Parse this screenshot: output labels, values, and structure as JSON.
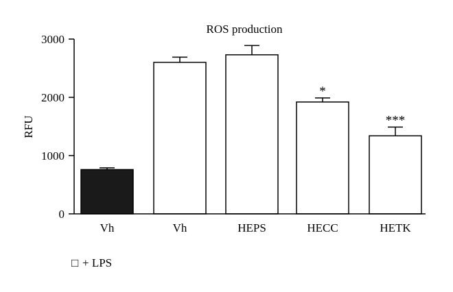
{
  "chart_data": {
    "type": "bar",
    "title": "ROS production",
    "ylabel": "RFU",
    "xlabel": "",
    "ylim": [
      0,
      3000
    ],
    "yticks": [
      0,
      1000,
      2000,
      3000
    ],
    "grid": false,
    "categories": [
      "Vh",
      "Vh",
      "HEPS",
      "HECC",
      "HETK"
    ],
    "values": [
      760,
      2600,
      2730,
      1920,
      1340
    ],
    "errors": [
      30,
      90,
      160,
      70,
      150
    ],
    "significance": [
      "",
      "",
      "",
      "*",
      "***"
    ],
    "bar_fill": [
      "#1a1a1a",
      "#ffffff",
      "#ffffff",
      "#ffffff",
      "#ffffff"
    ],
    "legend": {
      "position": "bottom-left",
      "symbol": "□",
      "label": "+ LPS"
    }
  }
}
